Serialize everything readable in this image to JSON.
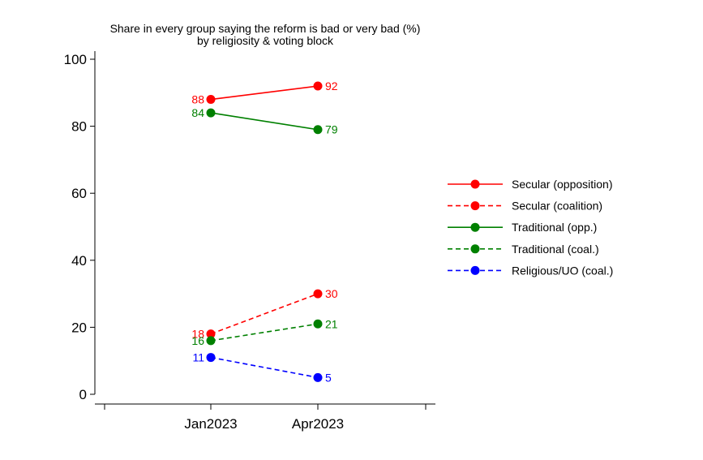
{
  "chart_data": {
    "type": "line",
    "title": "Share in every group saying the reform is bad or very bad (%)",
    "subtitle": "by religiosity & voting block",
    "xlabel": "",
    "ylabel": "",
    "categories": [
      "Jan2023",
      "Apr2023"
    ],
    "ylim": [
      0,
      100
    ],
    "yticks": [
      0,
      20,
      40,
      60,
      80,
      100
    ],
    "grid": false,
    "legend_position": "right",
    "series": [
      {
        "name": "Secular (opposition)",
        "values": [
          88,
          92
        ],
        "labels": [
          "88",
          "92"
        ],
        "color": "#ff0000",
        "dashed": false
      },
      {
        "name": "Secular (coalition)",
        "values": [
          18,
          30
        ],
        "labels": [
          "18",
          "30"
        ],
        "color": "#ff0000",
        "dashed": true
      },
      {
        "name": "Traditional (opp.)",
        "values": [
          84,
          79
        ],
        "labels": [
          "84",
          "79"
        ],
        "color": "#008000",
        "dashed": false
      },
      {
        "name": "Traditional (coal.)",
        "values": [
          16,
          21
        ],
        "labels": [
          "16",
          "21"
        ],
        "color": "#008000",
        "dashed": true
      },
      {
        "name": "Religious/UO (coal.)",
        "values": [
          11,
          5
        ],
        "labels": [
          "11",
          "5"
        ],
        "color": "#0000ff",
        "dashed": true
      }
    ]
  }
}
